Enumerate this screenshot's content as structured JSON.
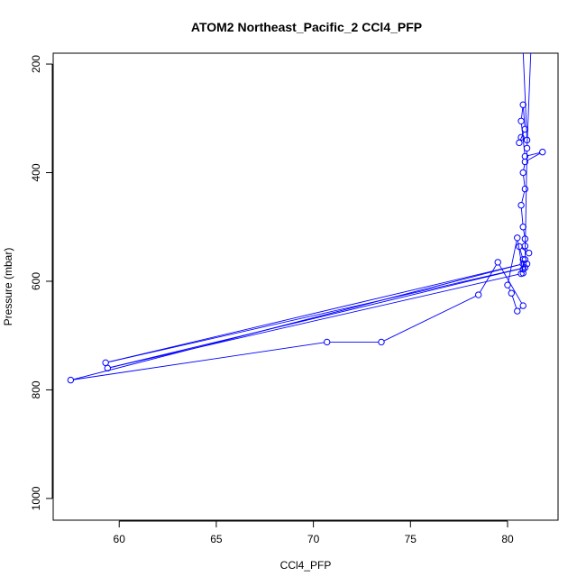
{
  "chart_data": {
    "type": "line",
    "title": "ATOM2 Northeast_Pacific_2 CCl4_PFP",
    "xlabel": "CCl4_PFP",
    "ylabel": "Pressure (mbar)",
    "xlim": [
      56.6,
      82.6
    ],
    "ylim": [
      1040,
      180
    ],
    "y_reversed": true,
    "x_ticks": [
      60,
      65,
      70,
      75,
      80
    ],
    "y_ticks": [
      200,
      400,
      600,
      800,
      1000
    ],
    "grid": false,
    "series": [
      {
        "color": "#0000ff",
        "marker": "open-circle",
        "points": [
          [
            80.8,
            175
          ],
          [
            81.0,
            340
          ],
          [
            80.7,
            335
          ],
          [
            80.6,
            345
          ],
          [
            80.9,
            320
          ],
          [
            80.8,
            275
          ],
          [
            80.7,
            305
          ],
          [
            80.9,
            370
          ],
          [
            81.8,
            362
          ],
          [
            80.9,
            380
          ],
          [
            80.8,
            400
          ],
          [
            80.9,
            430
          ],
          [
            80.7,
            460
          ],
          [
            80.8,
            500
          ],
          [
            80.9,
            522
          ],
          [
            80.9,
            535
          ],
          [
            81.1,
            548
          ],
          [
            80.6,
            536
          ],
          [
            80.8,
            560
          ],
          [
            80.8,
            578
          ],
          [
            81.0,
            568
          ],
          [
            80.8,
            585
          ],
          [
            80.5,
            520
          ],
          [
            80.0,
            607
          ],
          [
            80.2,
            622
          ],
          [
            80.5,
            655
          ],
          [
            80.8,
            645
          ],
          [
            79.5,
            565
          ],
          [
            78.5,
            625
          ],
          [
            73.5,
            712
          ],
          [
            70.7,
            712
          ],
          [
            57.5,
            782
          ],
          [
            80.8,
            568
          ],
          [
            59.3,
            750
          ],
          [
            80.9,
            575
          ],
          [
            59.4,
            760
          ],
          [
            80.7,
            586
          ],
          [
            80.9,
            560
          ],
          [
            81.0,
            355
          ],
          [
            81.2,
            175
          ]
        ]
      }
    ]
  }
}
